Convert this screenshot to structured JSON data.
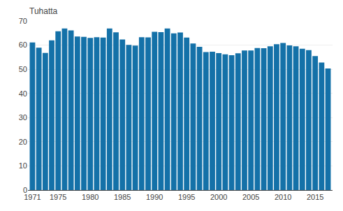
{
  "chart_data": {
    "type": "bar",
    "ylabel": "Tuhatta",
    "x": [
      1971,
      1972,
      1973,
      1974,
      1975,
      1976,
      1977,
      1978,
      1979,
      1980,
      1981,
      1982,
      1983,
      1984,
      1985,
      1986,
      1987,
      1988,
      1989,
      1990,
      1991,
      1992,
      1993,
      1994,
      1995,
      1996,
      1997,
      1998,
      1999,
      2000,
      2001,
      2002,
      2003,
      2004,
      2005,
      2006,
      2007,
      2008,
      2009,
      2010,
      2011,
      2012,
      2013,
      2014,
      2015,
      2016,
      2017
    ],
    "values": [
      61.1,
      58.9,
      56.8,
      62.0,
      65.7,
      66.9,
      66.1,
      63.6,
      63.4,
      63.0,
      63.3,
      63.1,
      66.9,
      65.3,
      62.3,
      60.1,
      59.8,
      63.3,
      63.2,
      65.5,
      65.4,
      66.9,
      64.9,
      65.2,
      63.1,
      60.7,
      59.3,
      57.1,
      57.3,
      56.7,
      56.2,
      55.8,
      56.6,
      57.8,
      57.8,
      58.8,
      58.7,
      59.5,
      60.4,
      60.9,
      59.9,
      59.5,
      58.5,
      57.9,
      55.5,
      52.8,
      50.3
    ],
    "color": "#1471a8",
    "xlim": [
      1970.3,
      2017.7
    ],
    "xticks": [
      1971,
      1975,
      1980,
      1985,
      1990,
      1995,
      2000,
      2005,
      2010,
      2015
    ],
    "ylim": [
      0,
      70
    ],
    "yticks": [
      0,
      10,
      20,
      30,
      40,
      50,
      60,
      70
    ],
    "grid": true
  }
}
